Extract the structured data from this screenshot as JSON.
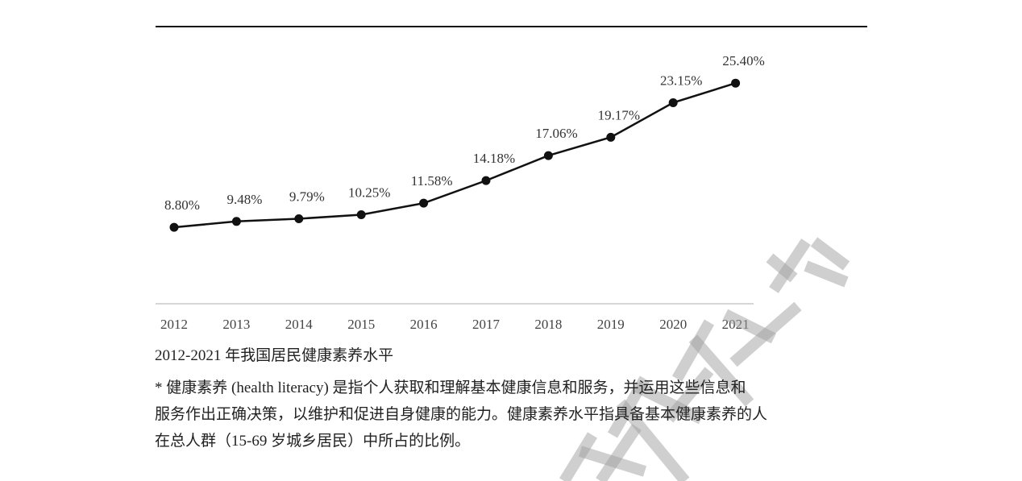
{
  "chart_data": {
    "type": "line",
    "categories": [
      "2012",
      "2013",
      "2014",
      "2015",
      "2016",
      "2017",
      "2018",
      "2019",
      "2020",
      "2021"
    ],
    "values": [
      8.8,
      9.48,
      9.79,
      10.25,
      11.58,
      14.18,
      17.06,
      19.17,
      23.15,
      25.4
    ],
    "data_labels": [
      "8.80%",
      "9.48%",
      "9.79%",
      "10.25%",
      "11.58%",
      "14.18%",
      "17.06%",
      "19.17%",
      "23.15%",
      "25.40%"
    ],
    "ylim": [
      0,
      28
    ],
    "grid": false,
    "line_color": "#111111",
    "axis_color": "#c8c8c8"
  },
  "caption": {
    "title": "2012-2021 年我国居民健康素养水平",
    "note_lines": [
      "* 健康素养 (health literacy) 是指个人获取和理解基本健康信息和服务，并运用这些信息和",
      "服务作出正确决策，以维护和促进自身健康的能力。健康素养水平指具备基本健康素养的人",
      "在总人群（15-69 岁城乡居民）中所占的比例。"
    ]
  },
  "watermark": "与发展中心"
}
